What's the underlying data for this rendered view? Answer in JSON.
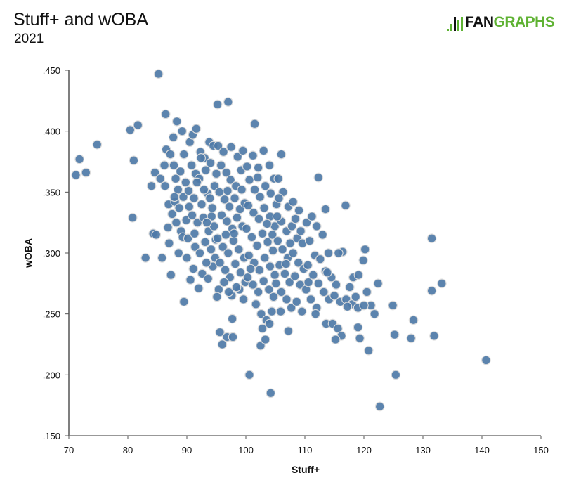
{
  "header": {
    "title": "Stuff+ and wOBA",
    "subtitle": "2021"
  },
  "logo": {
    "text_a": "FAN",
    "text_b": "GRAPHS",
    "accent_color": "#5fb233"
  },
  "chart_data": {
    "type": "scatter",
    "title": "Stuff+ and wOBA",
    "subtitle": "2021",
    "xlabel": "Stuff+",
    "ylabel": "wOBA",
    "xlim": [
      70,
      150
    ],
    "ylim": [
      0.15,
      0.45
    ],
    "xticks": [
      "70",
      "80",
      "90",
      "100",
      "110",
      "120",
      "130",
      "140",
      "150"
    ],
    "yticks": [
      ".150",
      ".200",
      ".250",
      ".300",
      ".350",
      ".400",
      ".450"
    ],
    "grid": false,
    "point_color": "#4e79a7",
    "points": [
      [
        85.2,
        0.447
      ],
      [
        95.2,
        0.422
      ],
      [
        97.0,
        0.424
      ],
      [
        101.5,
        0.406
      ],
      [
        80.4,
        0.401
      ],
      [
        81.7,
        0.405
      ],
      [
        74.8,
        0.389
      ],
      [
        71.8,
        0.377
      ],
      [
        71.2,
        0.364
      ],
      [
        72.9,
        0.366
      ],
      [
        81.0,
        0.376
      ],
      [
        80.8,
        0.329
      ],
      [
        83.0,
        0.296
      ],
      [
        84.3,
        0.316
      ],
      [
        84.8,
        0.315
      ],
      [
        86.4,
        0.414
      ],
      [
        89.5,
        0.26
      ],
      [
        100.6,
        0.2
      ],
      [
        104.2,
        0.185
      ],
      [
        122.7,
        0.174
      ],
      [
        140.7,
        0.212
      ],
      [
        125.4,
        0.2
      ],
      [
        131.5,
        0.312
      ],
      [
        133.2,
        0.275
      ],
      [
        131.5,
        0.269
      ],
      [
        131.9,
        0.232
      ],
      [
        128.4,
        0.245
      ],
      [
        128.0,
        0.23
      ],
      [
        125.2,
        0.233
      ],
      [
        124.9,
        0.257
      ],
      [
        122.4,
        0.275
      ],
      [
        120.2,
        0.303
      ],
      [
        119.9,
        0.294
      ],
      [
        120.8,
        0.22
      ],
      [
        119.0,
        0.239
      ],
      [
        119.3,
        0.23
      ],
      [
        116.9,
        0.339
      ],
      [
        112.3,
        0.362
      ],
      [
        106.0,
        0.381
      ],
      [
        96.0,
        0.225
      ],
      [
        95.6,
        0.235
      ],
      [
        97.7,
        0.246
      ],
      [
        96.8,
        0.231
      ],
      [
        97.8,
        0.231
      ],
      [
        102.5,
        0.224
      ],
      [
        103.3,
        0.229
      ],
      [
        84.0,
        0.355
      ],
      [
        84.6,
        0.366
      ],
      [
        86.5,
        0.385
      ],
      [
        87.2,
        0.381
      ],
      [
        87.8,
        0.372
      ],
      [
        88.1,
        0.361
      ],
      [
        88.5,
        0.352
      ],
      [
        86.9,
        0.34
      ],
      [
        87.5,
        0.332
      ],
      [
        88.2,
        0.325
      ],
      [
        89.0,
        0.318
      ],
      [
        86.3,
        0.355
      ],
      [
        87.0,
        0.308
      ],
      [
        88.6,
        0.3
      ],
      [
        89.4,
        0.346
      ],
      [
        89.8,
        0.358
      ],
      [
        86.2,
        0.372
      ],
      [
        87.7,
        0.395
      ],
      [
        88.3,
        0.408
      ],
      [
        89.2,
        0.4
      ],
      [
        89.5,
        0.381
      ],
      [
        88.0,
        0.342
      ],
      [
        87.3,
        0.282
      ],
      [
        88.7,
        0.337
      ],
      [
        89.9,
        0.327
      ],
      [
        89.3,
        0.313
      ],
      [
        86.8,
        0.321
      ],
      [
        85.5,
        0.361
      ],
      [
        85.8,
        0.296
      ],
      [
        90.0,
        0.296
      ],
      [
        88.9,
        0.367
      ],
      [
        87.9,
        0.346
      ],
      [
        90.5,
        0.391
      ],
      [
        91.0,
        0.397
      ],
      [
        91.6,
        0.402
      ],
      [
        92.3,
        0.383
      ],
      [
        93.0,
        0.378
      ],
      [
        93.8,
        0.391
      ],
      [
        94.5,
        0.388
      ],
      [
        90.8,
        0.372
      ],
      [
        91.5,
        0.365
      ],
      [
        92.1,
        0.361
      ],
      [
        93.2,
        0.368
      ],
      [
        94.0,
        0.374
      ],
      [
        94.7,
        0.355
      ],
      [
        90.3,
        0.351
      ],
      [
        91.2,
        0.345
      ],
      [
        92.5,
        0.34
      ],
      [
        93.5,
        0.349
      ],
      [
        94.3,
        0.337
      ],
      [
        90.9,
        0.331
      ],
      [
        91.8,
        0.325
      ],
      [
        92.8,
        0.329
      ],
      [
        93.7,
        0.318
      ],
      [
        94.6,
        0.322
      ],
      [
        90.2,
        0.312
      ],
      [
        91.4,
        0.305
      ],
      [
        92.2,
        0.3
      ],
      [
        93.1,
        0.309
      ],
      [
        94.1,
        0.303
      ],
      [
        94.8,
        0.296
      ],
      [
        91.1,
        0.287
      ],
      [
        92.6,
        0.283
      ],
      [
        93.6,
        0.279
      ],
      [
        94.4,
        0.289
      ],
      [
        90.6,
        0.278
      ],
      [
        92.0,
        0.271
      ],
      [
        93.3,
        0.292
      ],
      [
        94.9,
        0.311
      ],
      [
        90.4,
        0.338
      ],
      [
        91.7,
        0.358
      ],
      [
        93.9,
        0.345
      ],
      [
        92.9,
        0.352
      ],
      [
        91.3,
        0.316
      ],
      [
        94.2,
        0.33
      ],
      [
        93.4,
        0.325
      ],
      [
        95.0,
        0.365
      ],
      [
        92.4,
        0.378
      ],
      [
        95.3,
        0.388
      ],
      [
        96.2,
        0.383
      ],
      [
        97.5,
        0.387
      ],
      [
        98.6,
        0.379
      ],
      [
        99.5,
        0.384
      ],
      [
        95.8,
        0.372
      ],
      [
        96.7,
        0.366
      ],
      [
        97.4,
        0.36
      ],
      [
        98.3,
        0.355
      ],
      [
        99.2,
        0.368
      ],
      [
        95.5,
        0.35
      ],
      [
        96.4,
        0.344
      ],
      [
        97.2,
        0.338
      ],
      [
        98.1,
        0.345
      ],
      [
        99.0,
        0.336
      ],
      [
        99.8,
        0.341
      ],
      [
        95.9,
        0.331
      ],
      [
        96.8,
        0.326
      ],
      [
        97.7,
        0.32
      ],
      [
        98.5,
        0.329
      ],
      [
        99.4,
        0.322
      ],
      [
        95.2,
        0.312
      ],
      [
        96.1,
        0.305
      ],
      [
        97.0,
        0.3
      ],
      [
        97.9,
        0.31
      ],
      [
        98.8,
        0.303
      ],
      [
        99.7,
        0.296
      ],
      [
        95.6,
        0.292
      ],
      [
        96.5,
        0.286
      ],
      [
        97.3,
        0.28
      ],
      [
        98.2,
        0.291
      ],
      [
        99.1,
        0.284
      ],
      [
        99.9,
        0.276
      ],
      [
        95.4,
        0.27
      ],
      [
        96.3,
        0.276
      ],
      [
        97.6,
        0.265
      ],
      [
        98.9,
        0.27
      ],
      [
        99.6,
        0.262
      ],
      [
        95.1,
        0.264
      ],
      [
        97.1,
        0.268
      ],
      [
        98.4,
        0.272
      ],
      [
        96.9,
        0.351
      ],
      [
        99.3,
        0.352
      ],
      [
        98.0,
        0.316
      ],
      [
        96.6,
        0.315
      ],
      [
        100.2,
        0.371
      ],
      [
        101.2,
        0.38
      ],
      [
        102.1,
        0.37
      ],
      [
        103.0,
        0.384
      ],
      [
        104.0,
        0.372
      ],
      [
        104.8,
        0.361
      ],
      [
        100.6,
        0.36
      ],
      [
        101.5,
        0.352
      ],
      [
        102.4,
        0.346
      ],
      [
        103.3,
        0.355
      ],
      [
        104.2,
        0.349
      ],
      [
        100.4,
        0.339
      ],
      [
        101.3,
        0.333
      ],
      [
        102.2,
        0.328
      ],
      [
        103.1,
        0.337
      ],
      [
        104.1,
        0.33
      ],
      [
        104.9,
        0.322
      ],
      [
        100.1,
        0.32
      ],
      [
        101.0,
        0.313
      ],
      [
        101.9,
        0.306
      ],
      [
        102.8,
        0.316
      ],
      [
        103.7,
        0.309
      ],
      [
        104.6,
        0.302
      ],
      [
        100.5,
        0.298
      ],
      [
        101.4,
        0.292
      ],
      [
        102.3,
        0.286
      ],
      [
        103.2,
        0.296
      ],
      [
        104.1,
        0.289
      ],
      [
        104.9,
        0.282
      ],
      [
        100.3,
        0.28
      ],
      [
        101.2,
        0.274
      ],
      [
        102.1,
        0.268
      ],
      [
        103.0,
        0.277
      ],
      [
        103.9,
        0.27
      ],
      [
        104.7,
        0.264
      ],
      [
        101.7,
        0.258
      ],
      [
        102.6,
        0.25
      ],
      [
        103.5,
        0.245
      ],
      [
        104.4,
        0.252
      ],
      [
        102.8,
        0.238
      ],
      [
        104.0,
        0.242
      ],
      [
        100.8,
        0.287
      ],
      [
        103.6,
        0.324
      ],
      [
        102.0,
        0.362
      ],
      [
        104.5,
        0.315
      ],
      [
        105.5,
        0.361
      ],
      [
        106.3,
        0.35
      ],
      [
        107.2,
        0.338
      ],
      [
        108.0,
        0.342
      ],
      [
        109.0,
        0.335
      ],
      [
        105.2,
        0.34
      ],
      [
        106.0,
        0.326
      ],
      [
        106.9,
        0.318
      ],
      [
        107.8,
        0.322
      ],
      [
        108.7,
        0.312
      ],
      [
        109.6,
        0.308
      ],
      [
        105.4,
        0.31
      ],
      [
        106.2,
        0.303
      ],
      [
        107.1,
        0.296
      ],
      [
        108.0,
        0.3
      ],
      [
        108.9,
        0.292
      ],
      [
        109.8,
        0.287
      ],
      [
        105.7,
        0.29
      ],
      [
        106.6,
        0.283
      ],
      [
        107.4,
        0.276
      ],
      [
        108.3,
        0.281
      ],
      [
        109.2,
        0.274
      ],
      [
        105.1,
        0.275
      ],
      [
        106.0,
        0.268
      ],
      [
        106.9,
        0.262
      ],
      [
        107.7,
        0.255
      ],
      [
        108.6,
        0.26
      ],
      [
        109.5,
        0.252
      ],
      [
        105.9,
        0.252
      ],
      [
        107.2,
        0.236
      ],
      [
        105.3,
        0.33
      ],
      [
        109.3,
        0.318
      ],
      [
        107.5,
        0.308
      ],
      [
        106.8,
        0.291
      ],
      [
        105.6,
        0.345
      ],
      [
        108.4,
        0.328
      ],
      [
        110.3,
        0.325
      ],
      [
        111.2,
        0.33
      ],
      [
        112.0,
        0.322
      ],
      [
        113.0,
        0.315
      ],
      [
        114.0,
        0.3
      ],
      [
        110.8,
        0.31
      ],
      [
        111.7,
        0.298
      ],
      [
        112.6,
        0.295
      ],
      [
        113.5,
        0.285
      ],
      [
        114.5,
        0.28
      ],
      [
        115.3,
        0.274
      ],
      [
        110.5,
        0.29
      ],
      [
        111.4,
        0.282
      ],
      [
        112.3,
        0.275
      ],
      [
        113.2,
        0.268
      ],
      [
        114.1,
        0.262
      ],
      [
        115.0,
        0.265
      ],
      [
        116.0,
        0.26
      ],
      [
        117.0,
        0.262
      ],
      [
        118.0,
        0.258
      ],
      [
        119.0,
        0.255
      ],
      [
        110.2,
        0.27
      ],
      [
        111.0,
        0.262
      ],
      [
        112.0,
        0.255
      ],
      [
        113.6,
        0.242
      ],
      [
        114.7,
        0.242
      ],
      [
        115.6,
        0.238
      ],
      [
        116.2,
        0.232
      ],
      [
        115.2,
        0.229
      ],
      [
        117.2,
        0.256
      ],
      [
        118.2,
        0.28
      ],
      [
        119.1,
        0.282
      ],
      [
        118.6,
        0.264
      ],
      [
        116.4,
        0.301
      ],
      [
        113.8,
        0.284
      ],
      [
        111.8,
        0.25
      ],
      [
        110.6,
        0.276
      ],
      [
        120.5,
        0.268
      ],
      [
        121.2,
        0.257
      ],
      [
        121.8,
        0.25
      ],
      [
        120.0,
        0.257
      ],
      [
        117.6,
        0.272
      ],
      [
        115.7,
        0.3
      ],
      [
        113.5,
        0.336
      ]
    ]
  }
}
